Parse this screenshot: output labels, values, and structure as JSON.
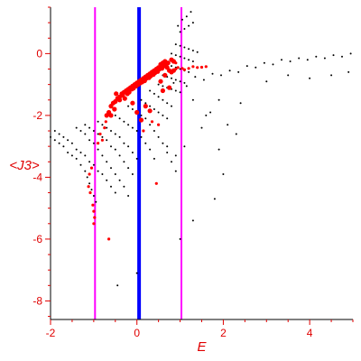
{
  "chart_data": {
    "type": "scatter",
    "title": "",
    "xlabel": "E",
    "ylabel": "<J3>",
    "xlim": [
      -2,
      5
    ],
    "ylim": [
      -8.6,
      1.5
    ],
    "x_ticks": [
      -2,
      0,
      2,
      4
    ],
    "y_ticks": [
      0,
      -2,
      -4,
      -6,
      -8
    ],
    "grid": false,
    "colors": {
      "frame": "#000000",
      "ticks": "#e00000",
      "tick_labels": "#e00000",
      "axis_titles": "#e00000",
      "black_points": "#000000",
      "red_points": "#ff0000",
      "blue_line": "#0000ff",
      "magenta_lines": "#ff00ff"
    },
    "vertical_lines": [
      {
        "x": 0.05,
        "color": "#0000ff",
        "width": "thick"
      },
      {
        "x": -0.97,
        "color": "#ff00ff",
        "width": "thin"
      },
      {
        "x": 1.03,
        "color": "#ff00ff",
        "width": "thin"
      }
    ],
    "series": [
      {
        "color": "#ff0000",
        "points": [
          [
            -1.05,
            -3.7
          ],
          [
            -1.1,
            -3.9
          ],
          [
            -1.12,
            -4.3
          ],
          [
            -1.08,
            -4.5
          ],
          [
            -1.02,
            -4.9
          ],
          [
            -1.0,
            -5.1
          ],
          [
            -0.98,
            -5.3
          ],
          [
            -1.0,
            -5.5
          ],
          [
            -0.8,
            -2.8
          ],
          [
            -0.75,
            -2.4
          ],
          [
            -0.72,
            -2.2
          ],
          [
            -0.7,
            -2.0
          ],
          [
            -0.65,
            -1.9
          ],
          [
            -0.6,
            -1.7
          ],
          [
            -0.55,
            -1.6
          ],
          [
            -0.5,
            -1.55
          ],
          [
            -0.45,
            -1.45
          ],
          [
            -0.4,
            -1.4
          ],
          [
            -0.35,
            -1.3
          ],
          [
            -0.3,
            -1.25
          ],
          [
            -0.25,
            -1.2
          ],
          [
            -0.2,
            -1.15
          ],
          [
            -0.15,
            -1.1
          ],
          [
            -0.1,
            -1.05
          ],
          [
            -0.05,
            -1.0
          ],
          [
            0.0,
            -0.95
          ],
          [
            0.05,
            -0.9
          ],
          [
            0.1,
            -0.85
          ],
          [
            0.15,
            -0.8
          ],
          [
            0.2,
            -0.75
          ],
          [
            0.25,
            -0.7
          ],
          [
            0.3,
            -0.65
          ],
          [
            0.35,
            -0.6
          ],
          [
            0.4,
            -0.55
          ],
          [
            0.45,
            -0.5
          ],
          [
            0.5,
            -0.45
          ],
          [
            0.55,
            -0.35
          ],
          [
            0.6,
            -0.3
          ],
          [
            0.65,
            -0.25
          ],
          [
            0.7,
            -0.45
          ],
          [
            0.75,
            -0.55
          ],
          [
            0.8,
            -0.6
          ],
          [
            0.85,
            -0.55
          ],
          [
            0.9,
            -0.5
          ],
          [
            0.95,
            -0.45
          ],
          [
            1.05,
            -0.48
          ],
          [
            1.1,
            -0.52
          ],
          [
            1.2,
            -0.48
          ],
          [
            1.3,
            -0.42
          ],
          [
            1.4,
            -0.45
          ],
          [
            1.5,
            -0.44
          ],
          [
            1.6,
            -0.42
          ],
          [
            -0.48,
            -1.3
          ],
          [
            -0.4,
            -1.5
          ],
          [
            -0.33,
            -1.35
          ],
          [
            -0.28,
            -1.45
          ],
          [
            -0.22,
            -1.3
          ],
          [
            -0.18,
            -1.25
          ],
          [
            -0.12,
            -1.15
          ],
          [
            -0.08,
            -1.12
          ],
          [
            -0.02,
            -1.05
          ],
          [
            0.03,
            -1.0
          ],
          [
            0.08,
            -0.95
          ],
          [
            0.12,
            -0.92
          ],
          [
            0.18,
            -0.88
          ],
          [
            0.22,
            -0.8
          ],
          [
            0.28,
            -0.78
          ],
          [
            0.32,
            -0.72
          ],
          [
            0.38,
            -0.68
          ],
          [
            0.42,
            -0.62
          ],
          [
            0.48,
            -0.58
          ],
          [
            0.52,
            -0.5
          ],
          [
            0.58,
            -0.48
          ],
          [
            0.62,
            -0.4
          ],
          [
            0.68,
            -0.35
          ],
          [
            0.72,
            -0.3
          ],
          [
            -0.1,
            -1.6
          ],
          [
            0.0,
            -1.9
          ],
          [
            0.1,
            -2.15
          ],
          [
            0.2,
            -1.7
          ],
          [
            0.3,
            -1.85
          ],
          [
            0.5,
            -2.3
          ],
          [
            0.45,
            -4.2
          ],
          [
            -0.65,
            -6.0
          ],
          [
            -0.9,
            -2.9
          ],
          [
            -0.85,
            -2.6
          ],
          [
            -0.6,
            -2.0
          ],
          [
            -0.52,
            -1.8
          ],
          [
            0.15,
            -2.5
          ],
          [
            0.35,
            -2.2
          ],
          [
            0.6,
            -1.2
          ],
          [
            0.75,
            -1.1
          ],
          [
            0.55,
            -0.9
          ],
          [
            0.65,
            -0.7
          ],
          [
            0.8,
            -0.2
          ],
          [
            0.85,
            -0.25
          ],
          [
            0.9,
            -0.3
          ]
        ]
      },
      {
        "color": "#000000",
        "points": [
          [
            -2.0,
            -2.7
          ],
          [
            -1.9,
            -2.8
          ],
          [
            -1.8,
            -2.9
          ],
          [
            -1.7,
            -3.0
          ],
          [
            -1.6,
            -3.2
          ],
          [
            -1.5,
            -3.3
          ],
          [
            -1.4,
            -3.4
          ],
          [
            -1.3,
            -3.6
          ],
          [
            -1.2,
            -3.8
          ],
          [
            -1.15,
            -4.0
          ],
          [
            -1.1,
            -4.2
          ],
          [
            -1.05,
            -4.4
          ],
          [
            -1.0,
            -4.6
          ],
          [
            -0.95,
            -4.8
          ],
          [
            -1.9,
            -2.5
          ],
          [
            -1.8,
            -2.6
          ],
          [
            -1.7,
            -2.7
          ],
          [
            -1.6,
            -2.8
          ],
          [
            -1.5,
            -2.9
          ],
          [
            -1.4,
            -3.1
          ],
          [
            -1.3,
            -3.2
          ],
          [
            -1.2,
            -3.3
          ],
          [
            -1.1,
            -3.5
          ],
          [
            -1.0,
            -3.6
          ],
          [
            -0.9,
            -3.8
          ],
          [
            -0.8,
            -3.9
          ],
          [
            -0.7,
            -4.1
          ],
          [
            -0.6,
            -4.3
          ],
          [
            -0.5,
            -4.5
          ],
          [
            -1.4,
            -2.4
          ],
          [
            -1.3,
            -2.5
          ],
          [
            -1.2,
            -2.6
          ],
          [
            -1.1,
            -2.8
          ],
          [
            -1.0,
            -2.9
          ],
          [
            -0.9,
            -3.1
          ],
          [
            -0.8,
            -3.3
          ],
          [
            -0.7,
            -3.5
          ],
          [
            -0.6,
            -3.7
          ],
          [
            -0.5,
            -3.9
          ],
          [
            -0.4,
            -4.1
          ],
          [
            -0.3,
            -4.3
          ],
          [
            -0.2,
            -4.6
          ],
          [
            -1.2,
            -2.3
          ],
          [
            -1.1,
            -2.4
          ],
          [
            -1.0,
            -2.5
          ],
          [
            -0.9,
            -2.6
          ],
          [
            -0.8,
            -2.7
          ],
          [
            -0.7,
            -2.8
          ],
          [
            -0.6,
            -3.0
          ],
          [
            -0.5,
            -3.1
          ],
          [
            -0.4,
            -3.3
          ],
          [
            -0.3,
            -3.5
          ],
          [
            -0.2,
            -3.7
          ],
          [
            -0.1,
            -3.9
          ],
          [
            -0.9,
            -2.2
          ],
          [
            -0.8,
            -2.3
          ],
          [
            -0.7,
            -2.4
          ],
          [
            -0.6,
            -2.5
          ],
          [
            -0.5,
            -2.6
          ],
          [
            -0.4,
            -2.7
          ],
          [
            -0.3,
            -2.9
          ],
          [
            -0.2,
            -3.0
          ],
          [
            -0.1,
            -3.2
          ],
          [
            0.0,
            -3.4
          ],
          [
            -0.5,
            -2.0
          ],
          [
            -0.4,
            -2.1
          ],
          [
            -0.3,
            -2.2
          ],
          [
            -0.2,
            -2.3
          ],
          [
            -0.1,
            -2.4
          ],
          [
            0.0,
            -2.5
          ],
          [
            0.1,
            -2.7
          ],
          [
            0.2,
            -2.9
          ],
          [
            0.3,
            -3.1
          ],
          [
            0.4,
            -3.4
          ],
          [
            -0.2,
            -1.7
          ],
          [
            -0.1,
            -1.8
          ],
          [
            0.0,
            -1.9
          ],
          [
            0.1,
            -2.0
          ],
          [
            0.2,
            -2.1
          ],
          [
            0.3,
            -2.3
          ],
          [
            0.4,
            -2.5
          ],
          [
            0.5,
            -2.7
          ],
          [
            0.6,
            -2.9
          ],
          [
            0.7,
            -3.2
          ],
          [
            0.8,
            -3.5
          ],
          [
            0.9,
            -3.8
          ],
          [
            0.1,
            -1.5
          ],
          [
            0.2,
            -1.6
          ],
          [
            0.3,
            -1.7
          ],
          [
            0.4,
            -1.8
          ],
          [
            0.5,
            -1.9
          ],
          [
            0.6,
            -2.0
          ],
          [
            0.7,
            -2.1
          ],
          [
            0.3,
            -1.2
          ],
          [
            0.4,
            -1.3
          ],
          [
            0.5,
            -1.4
          ],
          [
            0.6,
            -1.5
          ],
          [
            0.7,
            -1.6
          ],
          [
            0.8,
            -1.7
          ],
          [
            0.5,
            -1.0
          ],
          [
            0.6,
            -1.05
          ],
          [
            0.7,
            -1.1
          ],
          [
            0.8,
            -1.15
          ],
          [
            0.9,
            -1.2
          ],
          [
            1.0,
            -1.25
          ],
          [
            0.6,
            -0.7
          ],
          [
            0.7,
            -0.75
          ],
          [
            0.8,
            -0.8
          ],
          [
            0.9,
            -0.85
          ],
          [
            1.0,
            -0.9
          ],
          [
            1.1,
            -0.95
          ],
          [
            0.7,
            -0.35
          ],
          [
            0.8,
            -0.4
          ],
          [
            0.9,
            -0.45
          ],
          [
            1.0,
            -0.5
          ],
          [
            1.1,
            -0.55
          ],
          [
            1.2,
            -0.6
          ],
          [
            0.8,
            0.0
          ],
          [
            0.9,
            -0.05
          ],
          [
            1.0,
            -0.1
          ],
          [
            1.1,
            -0.15
          ],
          [
            1.2,
            -0.2
          ],
          [
            1.3,
            -0.25
          ],
          [
            0.9,
            0.3
          ],
          [
            1.0,
            0.25
          ],
          [
            1.1,
            0.2
          ],
          [
            1.2,
            0.15
          ],
          [
            1.3,
            0.1
          ],
          [
            1.4,
            0.05
          ],
          [
            1.0,
            0.7
          ],
          [
            1.1,
            0.8
          ],
          [
            1.2,
            0.9
          ],
          [
            1.3,
            1.0
          ],
          [
            1.15,
            1.2
          ],
          [
            1.25,
            1.35
          ],
          [
            1.05,
            1.1
          ],
          [
            0.95,
            0.9
          ],
          [
            1.3,
            -1.5
          ],
          [
            1.6,
            -2.0
          ],
          [
            1.9,
            -3.1
          ],
          [
            2.0,
            -3.9
          ],
          [
            1.8,
            -4.7
          ],
          [
            1.3,
            -5.4
          ],
          [
            1.0,
            -6.0
          ],
          [
            0.0,
            -7.1
          ],
          [
            -0.45,
            -7.5
          ],
          [
            1.1,
            -3.0
          ],
          [
            0.9,
            -3.3
          ],
          [
            0.7,
            -3.0
          ],
          [
            1.5,
            -2.4
          ],
          [
            2.3,
            -2.6
          ],
          [
            2.1,
            -2.3
          ],
          [
            1.7,
            -1.9
          ],
          [
            1.9,
            -1.5
          ],
          [
            2.4,
            -1.6
          ],
          [
            0.85,
            -0.95
          ],
          [
            1.15,
            -1.05
          ],
          [
            1.35,
            -0.75
          ],
          [
            1.55,
            -0.85
          ],
          [
            1.75,
            -0.65
          ],
          [
            1.95,
            -0.7
          ],
          [
            2.15,
            -0.55
          ],
          [
            2.35,
            -0.6
          ],
          [
            2.55,
            -0.4
          ],
          [
            2.75,
            -0.45
          ],
          [
            2.95,
            -0.3
          ],
          [
            3.15,
            -0.35
          ],
          [
            3.35,
            -0.2
          ],
          [
            3.55,
            -0.25
          ],
          [
            3.75,
            -0.15
          ],
          [
            3.95,
            -0.2
          ],
          [
            4.15,
            -0.1
          ],
          [
            4.35,
            -0.15
          ],
          [
            4.55,
            -0.05
          ],
          [
            4.75,
            -0.1
          ],
          [
            4.95,
            0.0
          ],
          [
            3.0,
            -0.9
          ],
          [
            3.5,
            -0.7
          ],
          [
            4.0,
            -0.8
          ],
          [
            4.5,
            -0.7
          ],
          [
            4.9,
            -0.6
          ]
        ]
      }
    ]
  }
}
